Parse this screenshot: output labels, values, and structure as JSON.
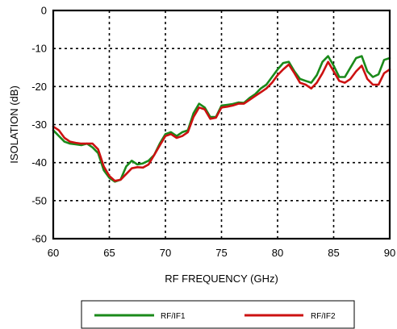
{
  "chart_data": {
    "type": "line",
    "xlabel": "RF FREQUENCY (GHz)",
    "ylabel": "ISOLATION  (dB)",
    "xlim": [
      60,
      90
    ],
    "ylim": [
      -60,
      0
    ],
    "xticks": [
      60,
      65,
      70,
      75,
      80,
      85,
      90
    ],
    "yticks": [
      0,
      -10,
      -20,
      -30,
      -40,
      -50,
      -60
    ],
    "grid": true,
    "grid_style": "dotted",
    "legend_position": "bottom",
    "series": [
      {
        "name": "RF/IF1",
        "color": "#1a8a1a",
        "x": [
          60,
          60.5,
          61,
          61.5,
          62,
          62.5,
          63,
          63.5,
          64,
          64.5,
          65,
          65.5,
          66,
          66.5,
          67,
          67.5,
          68,
          68.5,
          69,
          69.5,
          70,
          70.5,
          71,
          71.5,
          72,
          72.5,
          73,
          73.5,
          74,
          74.5,
          75,
          75.5,
          76,
          76.5,
          77,
          77.5,
          78,
          78.5,
          79,
          79.5,
          80,
          80.5,
          81,
          81.5,
          82,
          82.5,
          83,
          83.5,
          84,
          84.5,
          85,
          85.5,
          86,
          86.5,
          87,
          87.5,
          88,
          88.5,
          89,
          89.5,
          90
        ],
        "y": [
          -31.5,
          -33,
          -34.5,
          -35,
          -35.2,
          -35.4,
          -35,
          -36,
          -37.5,
          -42,
          -44,
          -45,
          -44.5,
          -41,
          -39.5,
          -40.5,
          -40.2,
          -39.5,
          -38,
          -35,
          -32.5,
          -32,
          -33,
          -32,
          -31.5,
          -27,
          -24.5,
          -25.5,
          -28,
          -28,
          -25,
          -24.8,
          -24.6,
          -24.2,
          -24.3,
          -23,
          -22,
          -20.5,
          -19.5,
          -17.5,
          -15.5,
          -13.8,
          -13.5,
          -16,
          -18,
          -18.5,
          -19,
          -17,
          -13.5,
          -12,
          -14.5,
          -17.5,
          -17.5,
          -15,
          -12.5,
          -12,
          -16,
          -17.5,
          -16.8,
          -13,
          -12.5
        ]
      },
      {
        "name": "RF/IF2",
        "color": "#cc1111",
        "x": [
          60,
          60.5,
          61,
          61.5,
          62,
          62.5,
          63,
          63.5,
          64,
          64.5,
          65,
          65.5,
          66,
          66.5,
          67,
          67.5,
          68,
          68.5,
          69,
          69.5,
          70,
          70.5,
          71,
          71.5,
          72,
          72.5,
          73,
          73.5,
          74,
          74.5,
          75,
          75.5,
          76,
          76.5,
          77,
          77.5,
          78,
          78.5,
          79,
          79.5,
          80,
          80.5,
          81,
          81.5,
          82,
          82.5,
          83,
          83.5,
          84,
          84.5,
          85,
          85.5,
          86,
          86.5,
          87,
          87.5,
          88,
          88.5,
          89,
          89.5,
          90
        ],
        "y": [
          -30.5,
          -31.5,
          -33.5,
          -34.5,
          -34.8,
          -35,
          -35,
          -35,
          -36.5,
          -41,
          -43.5,
          -44.8,
          -44.5,
          -43,
          -41.5,
          -41.2,
          -41.3,
          -40.5,
          -38,
          -35.5,
          -33,
          -32.5,
          -33.5,
          -33,
          -32,
          -28,
          -25.5,
          -26,
          -28.5,
          -28.2,
          -25.5,
          -25.3,
          -25,
          -24.5,
          -24.5,
          -23.5,
          -22.5,
          -21.5,
          -20.5,
          -19,
          -17,
          -15.5,
          -14.2,
          -16.5,
          -19,
          -19.5,
          -20.5,
          -19,
          -16.5,
          -13.5,
          -16,
          -18.5,
          -19,
          -18,
          -16,
          -14.5,
          -18,
          -19.5,
          -19.5,
          -16.5,
          -15.5
        ]
      }
    ]
  }
}
